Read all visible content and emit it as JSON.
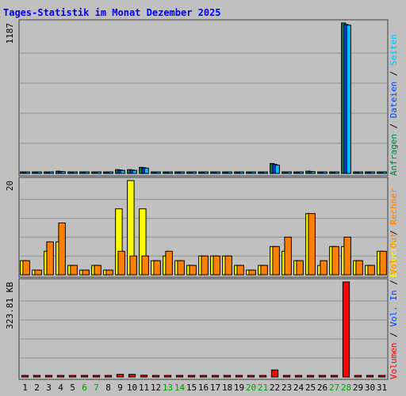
{
  "colors": {
    "background": "#c0c0c0",
    "panel": "#c0c0c0",
    "gridline": "#8f8f8f",
    "title": "#0000ff",
    "hits": "#008040",
    "files": "#0040ff",
    "pages": "#00c0ff",
    "visits": "#ffff00",
    "sites": "#ff8000",
    "kbytes_out": "#ff8000",
    "kbytes_in": "#0040ff",
    "volume": "#ff0000",
    "weekend_day": "#00a000",
    "day_label": "#000000"
  },
  "chart_data": {
    "type": "bar",
    "title": "Tages-Statistik im Monat Dezember 2025",
    "categories": [
      "1",
      "2",
      "3",
      "4",
      "5",
      "6",
      "7",
      "8",
      "9",
      "10",
      "11",
      "12",
      "13",
      "14",
      "15",
      "16",
      "17",
      "18",
      "19",
      "20",
      "21",
      "22",
      "23",
      "24",
      "25",
      "26",
      "27",
      "28",
      "29",
      "30",
      "31"
    ],
    "weekend_days": [
      "6",
      "7",
      "13",
      "14",
      "20",
      "21",
      "27",
      "28"
    ],
    "panels": [
      {
        "name": "requests",
        "axis_label": "1187",
        "ymax": 1187,
        "legend": [
          {
            "text": "Anfragen",
            "color_key": "hits"
          },
          {
            "text": "Dateien",
            "color_key": "files"
          },
          {
            "text": "Seiten",
            "color_key": "pages"
          }
        ],
        "series": [
          {
            "name": "Anfragen",
            "color_key": "hits",
            "values": [
              6,
              3,
              12,
              18,
              3,
              3,
              3,
              3,
              30,
              30,
              48,
              6,
              12,
              6,
              3,
              3,
              3,
              12,
              3,
              3,
              3,
              78,
              12,
              6,
              18,
              3,
              3,
              1187,
              3,
              3,
              3
            ]
          },
          {
            "name": "Dateien",
            "color_key": "files",
            "values": [
              5,
              3,
              10,
              16,
              3,
              3,
              3,
              3,
              27,
              27,
              45,
              5,
              10,
              5,
              3,
              3,
              3,
              10,
              3,
              3,
              3,
              72,
              10,
              5,
              16,
              3,
              3,
              1175,
              3,
              3,
              3
            ]
          },
          {
            "name": "Seiten",
            "color_key": "pages",
            "values": [
              4,
              2,
              8,
              14,
              2,
              2,
              2,
              2,
              24,
              24,
              42,
              4,
              8,
              4,
              2,
              2,
              2,
              8,
              2,
              2,
              2,
              66,
              8,
              4,
              14,
              2,
              2,
              1170,
              2,
              2,
              2
            ]
          }
        ]
      },
      {
        "name": "visits",
        "axis_label": "20",
        "ymax": 20,
        "legend": [
          {
            "text": "Besuche",
            "color_key": "visits"
          },
          {
            "text": "Rechner",
            "color_key": "sites"
          }
        ],
        "series": [
          {
            "name": "Besuche",
            "color_key": "visits",
            "values": [
              3,
              1,
              5,
              7,
              2,
              1,
              2,
              1,
              14,
              20,
              14,
              3,
              4,
              3,
              2,
              4,
              4,
              4,
              2,
              1,
              2,
              6,
              5,
              3,
              13,
              2,
              6,
              6,
              3,
              2,
              5
            ]
          },
          {
            "name": "Rechner",
            "color_key": "sites",
            "values": [
              3,
              1,
              7,
              11,
              2,
              1,
              2,
              1,
              5,
              4,
              4,
              3,
              5,
              3,
              2,
              4,
              4,
              4,
              2,
              1,
              2,
              6,
              8,
              3,
              13,
              3,
              6,
              8,
              3,
              2,
              5
            ]
          }
        ]
      },
      {
        "name": "volume",
        "axis_label": "323.81 KB",
        "ymax": 323.81,
        "legend": [
          {
            "text": "Volumen",
            "color_key": "volume"
          },
          {
            "text": "Vol. In",
            "color_key": "kbytes_in"
          },
          {
            "text": "Vol. Out",
            "color_key": "kbytes_out"
          }
        ],
        "series": [
          {
            "name": "Volumen",
            "color_key": "volume",
            "values": [
              2,
              0,
              2,
              2,
              2,
              2,
              2,
              2,
              9,
              9,
              6,
              2,
              2,
              2,
              2,
              2,
              2,
              2,
              2,
              2,
              2,
              24,
              2,
              2,
              2,
              2,
              2,
              323.81,
              2,
              2,
              2
            ]
          }
        ]
      }
    ],
    "legend_separator": "/"
  }
}
